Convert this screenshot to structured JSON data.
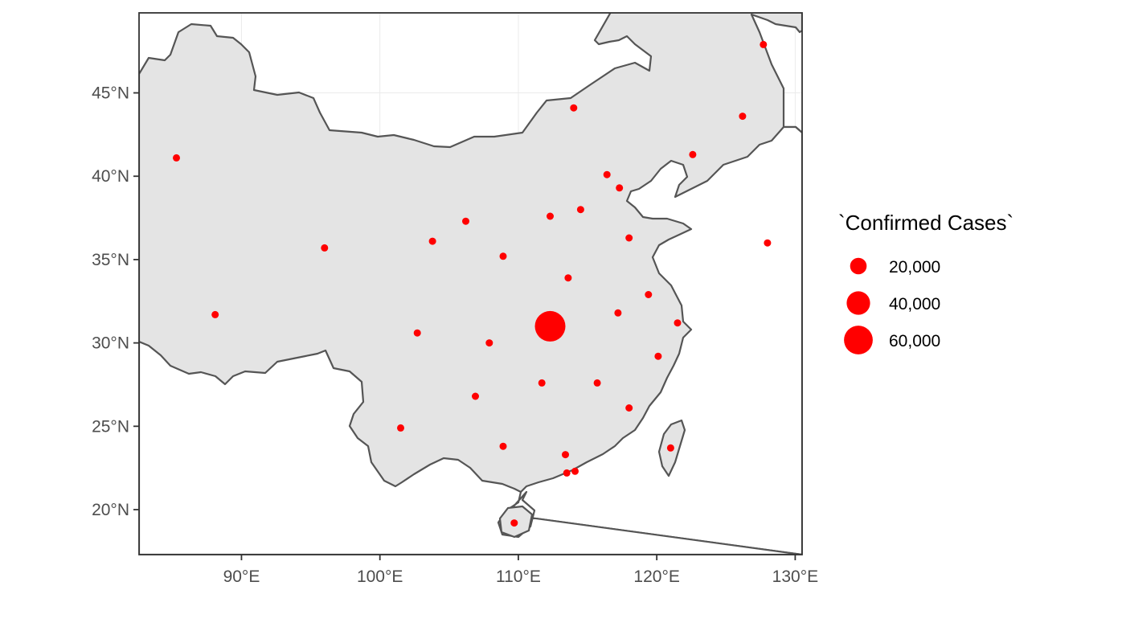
{
  "chart_data": {
    "type": "bubble-map",
    "title": "",
    "legend": {
      "title": "`Confirmed Cases`",
      "placement": "right",
      "entries": [
        {
          "label": "20,000",
          "value": 20000
        },
        {
          "label": "40,000",
          "value": 40000
        },
        {
          "label": "60,000",
          "value": 60000
        }
      ]
    },
    "x_axis": {
      "ticks": [
        {
          "value": 90,
          "label": "90°E"
        },
        {
          "value": 100,
          "label": "100°E"
        },
        {
          "value": 110,
          "label": "110°E"
        },
        {
          "value": 120,
          "label": "120°E"
        },
        {
          "value": 130,
          "label": "130°E"
        }
      ],
      "range": [
        82.6,
        130.5
      ]
    },
    "y_axis": {
      "ticks": [
        {
          "value": 20,
          "label": "20°N"
        },
        {
          "value": 25,
          "label": "25°N"
        },
        {
          "value": 30,
          "label": "30°N"
        },
        {
          "value": 35,
          "label": "35°N"
        },
        {
          "value": 40,
          "label": "40°N"
        },
        {
          "value": 45,
          "label": "45°N"
        }
      ],
      "range": [
        17.3,
        49.8
      ]
    },
    "grid": true,
    "point_color": "#ff0000",
    "land_color": "#e4e4e4",
    "border_color": "#555555",
    "points": [
      {
        "lon": 112.3,
        "lat": 31.0,
        "cases": 67800
      },
      {
        "lon": 113.4,
        "lat": 23.3,
        "cases": 1400
      },
      {
        "lon": 113.6,
        "lat": 33.9,
        "cases": 1270
      },
      {
        "lon": 120.1,
        "lat": 29.2,
        "cases": 1270
      },
      {
        "lon": 111.7,
        "lat": 27.6,
        "cases": 1020
      },
      {
        "lon": 117.2,
        "lat": 31.8,
        "cases": 990
      },
      {
        "lon": 115.7,
        "lat": 27.6,
        "cases": 935
      },
      {
        "lon": 118.0,
        "lat": 36.3,
        "cases": 900
      },
      {
        "lon": 128.0,
        "lat": 36.0,
        "cases": 1300
      },
      {
        "lon": 119.4,
        "lat": 32.9,
        "cases": 650
      },
      {
        "lon": 107.9,
        "lat": 30.0,
        "cases": 580
      },
      {
        "lon": 102.7,
        "lat": 30.6,
        "cases": 550
      },
      {
        "lon": 126.2,
        "lat": 43.6,
        "cases": 480
      },
      {
        "lon": 116.4,
        "lat": 40.1,
        "cases": 600
      },
      {
        "lon": 121.5,
        "lat": 31.2,
        "cases": 580
      },
      {
        "lon": 114.5,
        "lat": 38.0,
        "cases": 320
      },
      {
        "lon": 118.0,
        "lat": 26.1,
        "cases": 300
      },
      {
        "lon": 108.9,
        "lat": 23.8,
        "cases": 250
      },
      {
        "lon": 108.9,
        "lat": 35.2,
        "cases": 250
      },
      {
        "lon": 101.5,
        "lat": 24.9,
        "cases": 180
      },
      {
        "lon": 109.7,
        "lat": 19.2,
        "cases": 170
      },
      {
        "lon": 106.9,
        "lat": 26.8,
        "cases": 150
      },
      {
        "lon": 117.3,
        "lat": 39.3,
        "cases": 140
      },
      {
        "lon": 112.3,
        "lat": 37.6,
        "cases": 130
      },
      {
        "lon": 122.6,
        "lat": 41.3,
        "cases": 125
      },
      {
        "lon": 127.7,
        "lat": 47.9,
        "cases": 480
      },
      {
        "lon": 114.1,
        "lat": 22.3,
        "cases": 100
      },
      {
        "lon": 113.5,
        "lat": 22.2,
        "cases": 10
      },
      {
        "lon": 121.0,
        "lat": 23.7,
        "cases": 50
      },
      {
        "lon": 103.8,
        "lat": 36.1,
        "cases": 130
      },
      {
        "lon": 106.2,
        "lat": 37.3,
        "cases": 75
      },
      {
        "lon": 85.3,
        "lat": 41.1,
        "cases": 76
      },
      {
        "lon": 114.0,
        "lat": 44.1,
        "cases": 75
      },
      {
        "lon": 96.0,
        "lat": 35.7,
        "cases": 18
      },
      {
        "lon": 88.1,
        "lat": 31.7,
        "cases": 1
      }
    ]
  }
}
